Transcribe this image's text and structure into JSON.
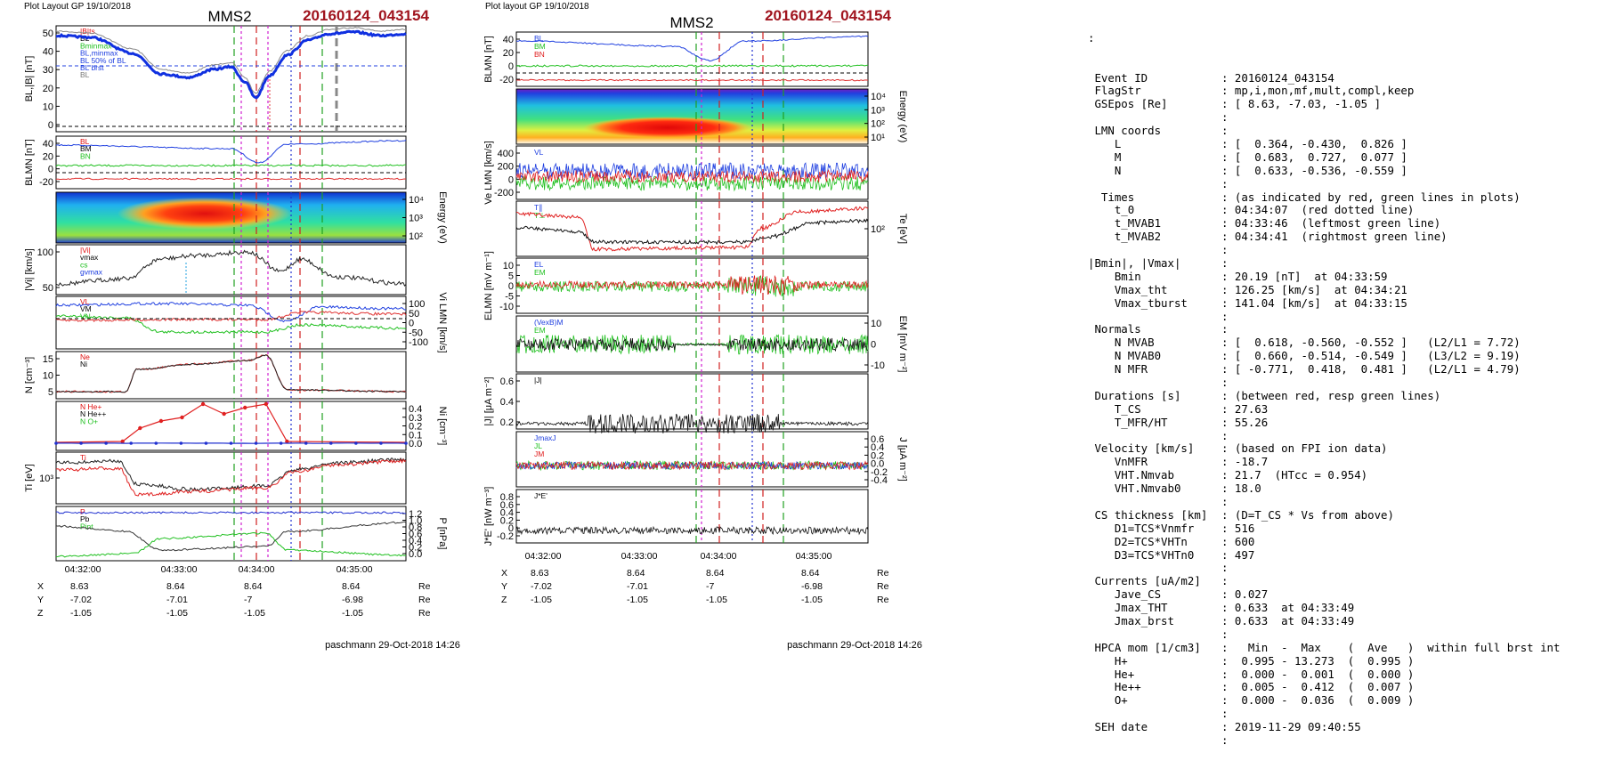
{
  "headers": {
    "left_small": "Plot Layout GP 19/10/2018",
    "right_small": "Plot layout GP 19/10/2018",
    "spacecraft": "MMS2",
    "event": "20160124_043154",
    "footer": "paschmann 29-Oct-2018 14:26",
    "event_color": "#a0141e"
  },
  "left_plot": {
    "panels": [
      {
        "id": "b",
        "ylabel": "BL,|B| [nT]",
        "ticks_left": [
          "50",
          "40",
          "30",
          "20",
          "10",
          "0"
        ],
        "ticks_right": [],
        "legend": [
          "|B|ts",
          "BL",
          "Bminmax",
          "BL,minmax",
          "BL 50% of BL",
          "BL brst",
          "BL"
        ]
      },
      {
        "id": "blmn",
        "ylabel": "BLMN [nT]",
        "ticks_left": [
          "40",
          "20",
          "0",
          "-20"
        ],
        "ticks_right": [],
        "legend": [
          "BL",
          "BM",
          "BN"
        ]
      },
      {
        "id": "spec",
        "ylabel": "Energy (eV)",
        "ticks_left": [],
        "ticks_right": [
          "10⁴",
          "10³",
          "10²"
        ],
        "legend": []
      },
      {
        "id": "vi",
        "ylabel": "|Vi| [km/s]",
        "ticks_left": [
          "100",
          "50"
        ],
        "ticks_right": [],
        "legend": [
          "|Vi|",
          "vmax",
          "cs",
          "gvmax"
        ]
      },
      {
        "id": "vlmn",
        "ylabel": "Vi LMN [km/s]",
        "ticks_left": [],
        "ticks_right": [
          "100",
          "50",
          "0",
          "-50",
          "-100"
        ],
        "legend": [
          "VL",
          "VM",
          "VN"
        ]
      },
      {
        "id": "n",
        "ylabel": "N [cm⁻³]",
        "ticks_left": [
          "15",
          "10",
          "5"
        ],
        "ticks_right": [],
        "legend": [
          "Ne",
          "Ni"
        ]
      },
      {
        "id": "hpca",
        "ylabel": "Ni [cm⁻³]",
        "ticks_left": [],
        "ticks_right": [
          "0.4",
          "0.3",
          "0.2",
          "0.1",
          "0.0"
        ],
        "legend": [
          "N He+",
          "N He++",
          "N O+"
        ]
      },
      {
        "id": "ti",
        "ylabel": "Ti [eV]",
        "ticks_left": [
          "10³"
        ],
        "ticks_right": [],
        "legend": [
          "Ti"
        ]
      },
      {
        "id": "p",
        "ylabel": "P [nPa]",
        "ticks_left": [],
        "ticks_right": [
          "1.2",
          "1.0",
          "0.8",
          "0.6",
          "0.4",
          "0.2",
          "0.0"
        ],
        "legend": [
          "P",
          "Pb",
          "Pint"
        ]
      }
    ],
    "time_ticks": [
      "04:32:00",
      "04:33:00",
      "04:34:00",
      "04:35:00"
    ],
    "pos_rows": [
      {
        "label": "X",
        "values": [
          "8.63",
          "8.64",
          "8.64",
          "8.64"
        ],
        "unit": "Re"
      },
      {
        "label": "Y",
        "values": [
          "-7.02",
          "-7.01",
          "-7",
          "-6.98"
        ],
        "unit": "Re"
      },
      {
        "label": "Z",
        "values": [
          "-1.05",
          "-1.05",
          "-1.05",
          "-1.05"
        ],
        "unit": "Re"
      }
    ]
  },
  "right_plot": {
    "panels": [
      {
        "id": "blmn",
        "ylabel": "BLMN [nT]",
        "ticks_left": [
          "40",
          "20",
          "0",
          "-20"
        ],
        "ticks_right": [],
        "legend": [
          "BL",
          "BM",
          "BN"
        ]
      },
      {
        "id": "espec",
        "ylabel": "Energy (eV)",
        "ticks_left": [],
        "ticks_right": [
          "10⁴",
          "10³",
          "10²",
          "10¹"
        ],
        "legend": []
      },
      {
        "id": "ve",
        "ylabel": "Ve LMN [km/s]",
        "ticks_left": [
          "400",
          "200",
          "0",
          "-200"
        ],
        "ticks_right": [],
        "legend": [
          "VL"
        ]
      },
      {
        "id": "te",
        "ylabel": "Te [eV]",
        "ticks_left": [],
        "ticks_right": [
          "10²"
        ],
        "legend": [
          "T∥",
          "T⊥"
        ]
      },
      {
        "id": "e",
        "ylabel": "ELMN [mV m⁻¹]",
        "ticks_left": [
          "10",
          "5",
          "0",
          "-5",
          "-10"
        ],
        "ticks_right": [],
        "legend": [
          "EL",
          "EM"
        ]
      },
      {
        "id": "em",
        "ylabel": "EM [mV m⁻²]",
        "ticks_left": [],
        "ticks_right": [
          "10",
          "0",
          "-10"
        ],
        "legend": [
          "(VexB)M",
          "EM"
        ]
      },
      {
        "id": "j",
        "ylabel": "|J| [μA m⁻²]",
        "ticks_left": [
          "0.6",
          "0.4",
          "0.2"
        ],
        "ticks_right": [],
        "legend": [
          "|J|"
        ]
      },
      {
        "id": "jlmn",
        "ylabel": "J [μA m⁻²]",
        "ticks_left": [],
        "ticks_right": [
          "0.6",
          "0.4",
          "0.2",
          "0.0",
          "-0.2",
          "-0.4"
        ],
        "legend": [
          "JmaxJ",
          "JL",
          "JM"
        ]
      },
      {
        "id": "je",
        "ylabel": "J*E' [nW m⁻³]",
        "ticks_left": [
          "0.8",
          "0.6",
          "0.4",
          "0.2",
          "0",
          "-0.2"
        ],
        "ticks_right": [],
        "legend": [
          "J*E'"
        ]
      }
    ],
    "time_ticks": [
      "04:32:00",
      "04:33:00",
      "04:34:00",
      "04:35:00"
    ],
    "pos_rows": [
      {
        "label": "X",
        "values": [
          "8.63",
          "8.64",
          "8.64",
          "8.64"
        ],
        "unit": "Re"
      },
      {
        "label": "Y",
        "values": [
          "-7.02",
          "-7.01",
          "-7",
          "-6.98"
        ],
        "unit": "Re"
      },
      {
        "label": "Z",
        "values": [
          "-1.05",
          "-1.05",
          "-1.05",
          "-1.05"
        ],
        "unit": "Re"
      }
    ]
  },
  "chart_data": {
    "type": "line",
    "title": "MMS2",
    "subtitle": "20160124_043154",
    "x_time_range": [
      "04:32:00",
      "04:35:50"
    ],
    "markers": {
      "t_0": "04:34:07",
      "t_MVAB1": "04:33:46",
      "t_MVAB2": "04:34:41",
      "Bmin": "04:33:59"
    },
    "series": [
      {
        "name": "BL",
        "x": [
          "04:32:00",
          "04:32:20",
          "04:32:40",
          "04:33:00",
          "04:33:20",
          "04:33:40",
          "04:33:55",
          "04:34:05",
          "04:34:20",
          "04:34:40",
          "04:35:00",
          "04:35:30",
          "04:35:50"
        ],
        "values": [
          48,
          47,
          38,
          26,
          24,
          28,
          20,
          26,
          40,
          46,
          48,
          47,
          49
        ]
      },
      {
        "name": "Ni",
        "x": [
          "04:32:00",
          "04:32:40",
          "04:32:50",
          "04:33:10",
          "04:33:40",
          "04:34:00",
          "04:34:10",
          "04:34:20",
          "04:34:40",
          "04:35:50"
        ],
        "values": [
          1.5,
          1.5,
          11,
          13,
          15,
          17,
          10,
          2,
          1.2,
          1.2
        ]
      },
      {
        "name": "N He++",
        "x": [
          "04:32:40",
          "04:32:50",
          "04:33:00",
          "04:33:10",
          "04:33:20",
          "04:33:30",
          "04:33:40",
          "04:33:50",
          "04:34:00",
          "04:34:10"
        ],
        "values": [
          0.005,
          0.1,
          0.18,
          0.2,
          0.21,
          0.4,
          0.3,
          0.38,
          0.4,
          0.005
        ]
      }
    ]
  },
  "info_panel": {
    "lead": ":",
    "lines": [
      {
        "label": " Event ID",
        "value": ": 20160124_043154"
      },
      {
        "label": " FlagStr",
        "value": ": mp,i,mon,mf,mult,compl,keep"
      },
      {
        "label": " GSEpos [Re]",
        "value": ": [ 8.63, -7.03, -1.05 ]"
      },
      {
        "label": "",
        "value": ":"
      },
      {
        "label": " LMN coords",
        "value": ":"
      },
      {
        "label": "    L",
        "value": ": [  0.364, -0.430,  0.826 ]"
      },
      {
        "label": "    M",
        "value": ": [  0.683,  0.727,  0.077 ]"
      },
      {
        "label": "    N",
        "value": ": [  0.633, -0.536, -0.559 ]"
      },
      {
        "label": "",
        "value": ":"
      },
      {
        "label": "  Times",
        "value": ": (as indicated by red, green lines in plots)"
      },
      {
        "label": "    t_0",
        "value": ": 04:34:07  (red dotted line)"
      },
      {
        "label": "    t_MVAB1",
        "value": ": 04:33:46  (leftmost green line)"
      },
      {
        "label": "    t_MVAB2",
        "value": ": 04:34:41  (rightmost green line)"
      },
      {
        "label": "",
        "value": ":"
      },
      {
        "label": "|Bmin|, |Vmax|",
        "value": ":"
      },
      {
        "label": "    Bmin",
        "value": ": 20.19 [nT]  at 04:33:59"
      },
      {
        "label": "    Vmax_tht",
        "value": ": 126.25 [km/s]  at 04:34:21"
      },
      {
        "label": "    Vmax_tburst",
        "value": ": 141.04 [km/s]  at 04:33:15"
      },
      {
        "label": "",
        "value": ":"
      },
      {
        "label": " Normals",
        "value": ":"
      },
      {
        "label": "    N MVAB",
        "value": ": [  0.618, -0.560, -0.552 ]   (L2/L1 = 7.72)"
      },
      {
        "label": "    N MVAB0",
        "value": ": [  0.660, -0.514, -0.549 ]   (L3/L2 = 9.19)"
      },
      {
        "label": "    N MFR",
        "value": ": [ -0.771,  0.418,  0.481 ]   (L2/L1 = 4.79)"
      },
      {
        "label": "",
        "value": ":"
      },
      {
        "label": " Durations [s]",
        "value": ": (between red, resp green lines)"
      },
      {
        "label": "    T_CS",
        "value": ": 27.63"
      },
      {
        "label": "    T_MFR/HT",
        "value": ": 55.26"
      },
      {
        "label": "",
        "value": ":"
      },
      {
        "label": " Velocity [km/s]",
        "value": ": (based on FPI ion data)"
      },
      {
        "label": "    VnMFR",
        "value": ": -18.7"
      },
      {
        "label": "    VHT.Nmvab",
        "value": ": 21.7  (HTcc = 0.954)"
      },
      {
        "label": "    VHT.Nmvab0",
        "value": ": 18.0"
      },
      {
        "label": "",
        "value": ":"
      },
      {
        "label": " CS thickness [km]",
        "value": ": (D=T_CS * Vs from above)"
      },
      {
        "label": "    D1=TCS*Vnmfr",
        "value": ": 516"
      },
      {
        "label": "    D2=TCS*VHTn",
        "value": ": 600"
      },
      {
        "label": "    D3=TCS*VHTn0",
        "value": ": 497"
      },
      {
        "label": "",
        "value": ":"
      },
      {
        "label": " Currents [uA/m2]",
        "value": ":"
      },
      {
        "label": "    Jave_CS",
        "value": ": 0.027"
      },
      {
        "label": "    Jmax_THT",
        "value": ": 0.633  at 04:33:49"
      },
      {
        "label": "    Jmax_brst",
        "value": ": 0.633  at 04:33:49"
      },
      {
        "label": "",
        "value": ":"
      },
      {
        "label": " HPCA mom [1/cm3]",
        "value": ":   Min  -  Max    (  Ave   )  within full brst int"
      },
      {
        "label": "    H+",
        "value": ":  0.995 - 13.273  (  0.995 )"
      },
      {
        "label": "    He+",
        "value": ":  0.000 -  0.001  (  0.000 )"
      },
      {
        "label": "    He++",
        "value": ":  0.005 -  0.412  (  0.007 )"
      },
      {
        "label": "    O+",
        "value": ":  0.000 -  0.036  (  0.009 )"
      },
      {
        "label": "",
        "value": ":"
      },
      {
        "label": " SEH date",
        "value": ": 2019-11-29 09:40:55"
      },
      {
        "label": "",
        "value": ":"
      }
    ]
  }
}
